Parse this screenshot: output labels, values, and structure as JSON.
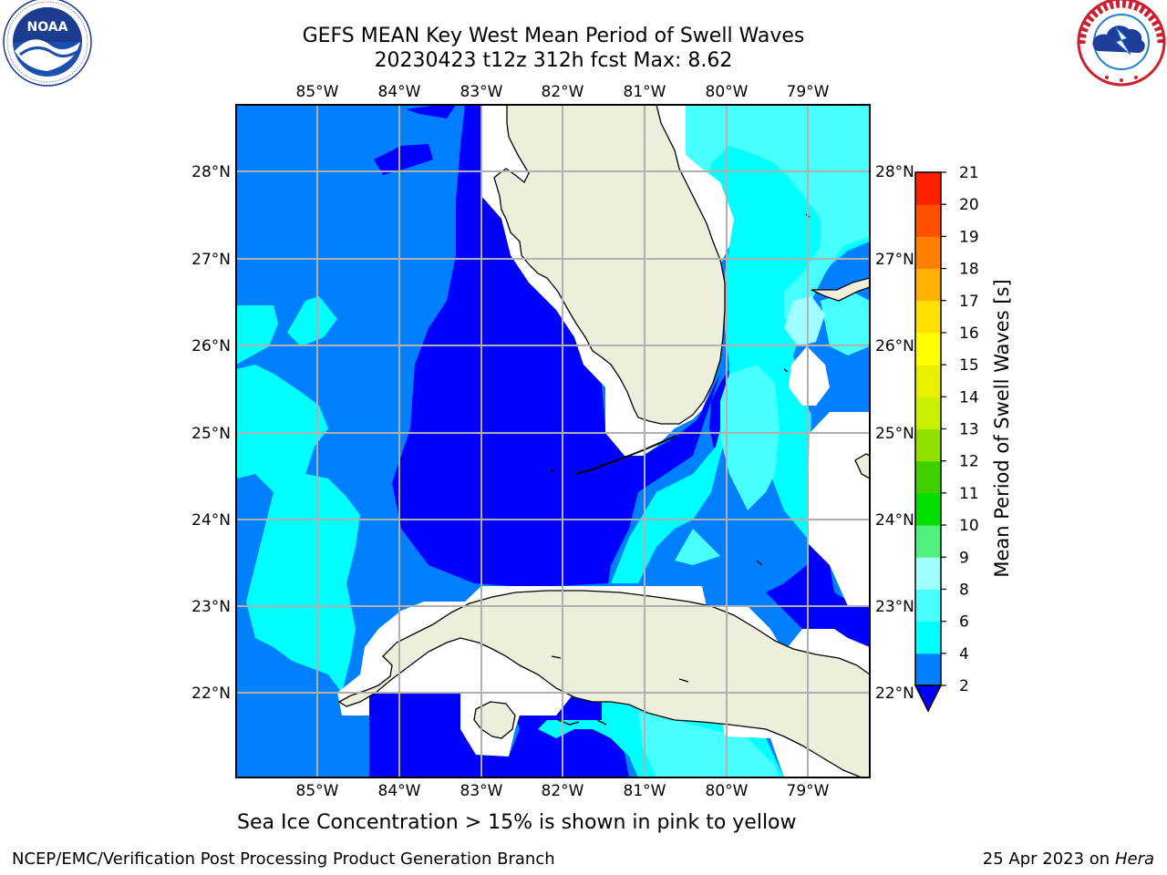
{
  "header": {
    "title_line1": "GEFS MEAN Key West Mean Period of Swell Waves",
    "title_line2": "20230423 t12z 312h fcst   Max: 8.62"
  },
  "logos": {
    "left": {
      "name": "noaa-logo",
      "text": "NOAA",
      "ring_text": "NATIONAL OCEANIC AND ATMOSPHERIC ADMINISTRATION · U.S. DEPARTMENT OF COMMERCE"
    },
    "right": {
      "name": "nws-logo",
      "ring_text": "NATIONAL WEATHER SERVICE"
    }
  },
  "map": {
    "lon_labels": [
      "85°W",
      "84°W",
      "83°W",
      "82°W",
      "81°W",
      "80°W",
      "79°W"
    ],
    "lat_labels": [
      "28°N",
      "27°N",
      "26°N",
      "25°N",
      "24°N",
      "23°N",
      "22°N"
    ],
    "colors": {
      "c2_4": "#0080ff",
      "c0_2": "#0000ff",
      "c4_6": "#00ffff",
      "c6_8": "#48ffff",
      "c8_9": "#a0ffff",
      "land": "#eeeedc",
      "gridline": "#b0b0b0"
    }
  },
  "colorbar": {
    "label": "Mean Period of Swell Waves [s]",
    "ticks": [
      "2",
      "4",
      "6",
      "8",
      "9",
      "10",
      "11",
      "12",
      "13",
      "14",
      "15",
      "16",
      "17",
      "18",
      "19",
      "20",
      "21"
    ],
    "colors": [
      "#0080ff",
      "#00ffff",
      "#48ffff",
      "#a0ffff",
      "#50f080",
      "#00e000",
      "#40d000",
      "#90e000",
      "#c8f000",
      "#e8f000",
      "#ffff00",
      "#ffe000",
      "#ffb000",
      "#ff8000",
      "#ff5000",
      "#ff2000"
    ],
    "under_color": "#0000ff"
  },
  "footer": {
    "note": "Sea Ice Concentration > 15% is shown in pink to yellow",
    "left": "NCEP/EMC/Verification Post Processing Product Generation Branch",
    "right_date": "25 Apr 2023 on",
    "right_host": "Hera"
  }
}
